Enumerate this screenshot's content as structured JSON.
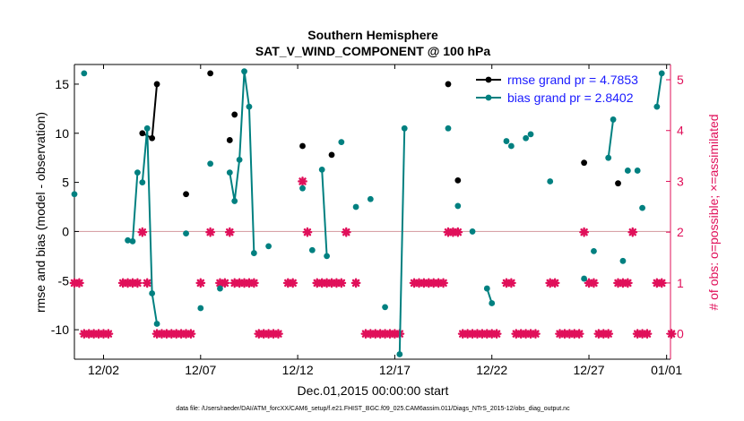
{
  "chart_data": {
    "type": "line",
    "title": "Southern Hemisphere",
    "subtitle": "SAT_V_WIND_COMPONENT @ 100 hPa",
    "xlabel": "Dec.01,2015 00:00:00 start",
    "ylabel": "rmse and bias (model - observation)",
    "ylabel_right": "# of obs: o=possible; ×=assimilated",
    "footnote": "data file: /Users/raeder/DAI/ATM_forcXX/CAM6_setup/f.e21.FHIST_BGC.f09_025.CAM6assim.011/Diags_NTrS_2015-12/obs_diag_output.nc",
    "xlim": [
      0.5,
      31.2
    ],
    "ylim": [
      -13,
      17
    ],
    "ylim_right": [
      -0.5,
      5.3
    ],
    "x_ticks": [
      {
        "value": 2,
        "label": "12/02"
      },
      {
        "value": 7,
        "label": "12/07"
      },
      {
        "value": 12,
        "label": "12/12"
      },
      {
        "value": 17,
        "label": "12/17"
      },
      {
        "value": 22,
        "label": "12/22"
      },
      {
        "value": 27,
        "label": "12/27"
      },
      {
        "value": 31,
        "label": "01/01"
      }
    ],
    "y_ticks": [
      {
        "value": 15,
        "label": "15"
      },
      {
        "value": 10,
        "label": "10"
      },
      {
        "value": 5,
        "label": "5"
      },
      {
        "value": 0,
        "label": "0"
      },
      {
        "value": -5,
        "label": "-5"
      },
      {
        "value": -10,
        "label": "-10"
      }
    ],
    "y_ticks_right": [
      {
        "value": 5,
        "label": "5"
      },
      {
        "value": 4,
        "label": "4"
      },
      {
        "value": 3,
        "label": "3"
      },
      {
        "value": 2,
        "label": "2"
      },
      {
        "value": 1,
        "label": "1"
      },
      {
        "value": 0,
        "label": "0"
      }
    ],
    "zero_line": 0,
    "legend": [
      {
        "text": "rmse grand pr = 4.7853",
        "color": "#000000"
      },
      {
        "text": "bias grand pr = 2.8402",
        "color": "#008080"
      }
    ],
    "series": [
      {
        "name": "rmse",
        "color": "#000000",
        "segments": [
          [
            [
              4,
              10.0
            ],
            [
              4.5,
              9.5
            ],
            [
              4.75,
              15.0
            ]
          ],
          [
            [
              6.25,
              3.8
            ]
          ],
          [
            [
              7.5,
              16.1
            ]
          ],
          [
            [
              8.5,
              9.3
            ]
          ],
          [
            [
              8.75,
              11.9
            ]
          ],
          [
            [
              12.25,
              8.7
            ]
          ],
          [
            [
              13.75,
              7.8
            ]
          ],
          [
            [
              19.75,
              15.0
            ]
          ],
          [
            [
              20.25,
              5.2
            ]
          ],
          [
            [
              26.75,
              7.0
            ]
          ],
          [
            [
              28.5,
              4.9
            ]
          ]
        ]
      },
      {
        "name": "bias",
        "color": "#008080",
        "segments": [
          [
            [
              0.5,
              3.8
            ]
          ],
          [
            [
              1,
              16.1
            ]
          ],
          [
            [
              3.25,
              -0.9
            ],
            [
              3.5,
              -1.0
            ],
            [
              3.75,
              6.0
            ]
          ],
          [
            [
              4,
              5.0
            ],
            [
              4.25,
              10.5
            ],
            [
              4.5,
              -6.3
            ],
            [
              4.75,
              -9.4
            ]
          ],
          [
            [
              6.25,
              -0.2
            ]
          ],
          [
            [
              7,
              -7.8
            ]
          ],
          [
            [
              7.5,
              6.9
            ]
          ],
          [
            [
              8,
              -5.8
            ]
          ],
          [
            [
              8.5,
              6.0
            ],
            [
              8.75,
              3.1
            ],
            [
              9,
              7.3
            ],
            [
              9.25,
              16.3
            ],
            [
              9.5,
              12.7
            ],
            [
              9.75,
              -2.2
            ]
          ],
          [
            [
              10.5,
              -1.5
            ]
          ],
          [
            [
              12.25,
              4.4
            ]
          ],
          [
            [
              12.75,
              -1.9
            ]
          ],
          [
            [
              13.25,
              6.3
            ],
            [
              13.5,
              -2.5
            ]
          ],
          [
            [
              14.25,
              9.1
            ]
          ],
          [
            [
              15,
              2.5
            ]
          ],
          [
            [
              15.75,
              3.3
            ]
          ],
          [
            [
              16.5,
              -7.7
            ]
          ],
          [
            [
              17.25,
              -12.5
            ],
            [
              17.5,
              10.5
            ]
          ],
          [
            [
              19.75,
              10.5
            ]
          ],
          [
            [
              20.25,
              2.6
            ]
          ],
          [
            [
              21,
              0.0
            ]
          ],
          [
            [
              21.75,
              -5.8
            ],
            [
              22,
              -7.3
            ]
          ],
          [
            [
              22.75,
              9.2
            ]
          ],
          [
            [
              23,
              8.7
            ]
          ],
          [
            [
              23.75,
              9.5
            ]
          ],
          [
            [
              24,
              9.9
            ]
          ],
          [
            [
              25,
              5.1
            ]
          ],
          [
            [
              26.75,
              -4.8
            ]
          ],
          [
            [
              27.25,
              -2.0
            ]
          ],
          [
            [
              28,
              7.5
            ],
            [
              28.25,
              11.4
            ]
          ],
          [
            [
              28.75,
              -3.0
            ]
          ],
          [
            [
              29,
              6.2
            ]
          ],
          [
            [
              29.5,
              6.2
            ]
          ],
          [
            [
              29.75,
              2.4
            ]
          ],
          [
            [
              30.5,
              12.7
            ],
            [
              30.75,
              16.1
            ]
          ]
        ]
      }
    ],
    "obs_counts": {
      "name": "# of obs",
      "color": "#e0105a",
      "points": [
        [
          0.5,
          1
        ],
        [
          0.75,
          1
        ],
        [
          1,
          0
        ],
        [
          1.25,
          0
        ],
        [
          1.5,
          0
        ],
        [
          1.75,
          0
        ],
        [
          2,
          0
        ],
        [
          2.25,
          0
        ],
        [
          3,
          1
        ],
        [
          3.25,
          1
        ],
        [
          3.5,
          1
        ],
        [
          3.75,
          1
        ],
        [
          4,
          2
        ],
        [
          4.25,
          1
        ],
        [
          4.75,
          0
        ],
        [
          5,
          0
        ],
        [
          5.25,
          0
        ],
        [
          5.5,
          0
        ],
        [
          5.75,
          0
        ],
        [
          6,
          0
        ],
        [
          6.25,
          0
        ],
        [
          6.5,
          0
        ],
        [
          7,
          1
        ],
        [
          7.5,
          2
        ],
        [
          8,
          1
        ],
        [
          8.25,
          1
        ],
        [
          8.5,
          2
        ],
        [
          8.75,
          1
        ],
        [
          9,
          1
        ],
        [
          9.25,
          1
        ],
        [
          9.5,
          1
        ],
        [
          9.75,
          1
        ],
        [
          10,
          0
        ],
        [
          10.25,
          0
        ],
        [
          10.5,
          0
        ],
        [
          10.75,
          0
        ],
        [
          11,
          0
        ],
        [
          11.5,
          1
        ],
        [
          11.75,
          1
        ],
        [
          12.25,
          3
        ],
        [
          12.5,
          2
        ],
        [
          13,
          1
        ],
        [
          13.25,
          1
        ],
        [
          13.5,
          1
        ],
        [
          13.75,
          1
        ],
        [
          14,
          1
        ],
        [
          14.25,
          1
        ],
        [
          14.5,
          2
        ],
        [
          15,
          1
        ],
        [
          15.5,
          0
        ],
        [
          15.75,
          0
        ],
        [
          16,
          0
        ],
        [
          16.25,
          0
        ],
        [
          16.5,
          0
        ],
        [
          16.75,
          0
        ],
        [
          17,
          0
        ],
        [
          17.25,
          0
        ],
        [
          18,
          1
        ],
        [
          18.25,
          1
        ],
        [
          18.5,
          1
        ],
        [
          18.75,
          1
        ],
        [
          19,
          1
        ],
        [
          19.25,
          1
        ],
        [
          19.5,
          1
        ],
        [
          19.75,
          2
        ],
        [
          20,
          2
        ],
        [
          20.25,
          2
        ],
        [
          20.5,
          0
        ],
        [
          20.75,
          0
        ],
        [
          21,
          0
        ],
        [
          21.25,
          0
        ],
        [
          21.5,
          0
        ],
        [
          21.75,
          0
        ],
        [
          22,
          0
        ],
        [
          22.25,
          0
        ],
        [
          22.75,
          1
        ],
        [
          23,
          1
        ],
        [
          23.25,
          0
        ],
        [
          23.5,
          0
        ],
        [
          23.75,
          0
        ],
        [
          24,
          0
        ],
        [
          24.25,
          0
        ],
        [
          25,
          1
        ],
        [
          25.25,
          1
        ],
        [
          25.5,
          0
        ],
        [
          25.75,
          0
        ],
        [
          26,
          0
        ],
        [
          26.25,
          0
        ],
        [
          26.5,
          0
        ],
        [
          26.75,
          2
        ],
        [
          27,
          1
        ],
        [
          27.25,
          1
        ],
        [
          27.5,
          0
        ],
        [
          27.75,
          0
        ],
        [
          28,
          0
        ],
        [
          28.5,
          1
        ],
        [
          28.75,
          1
        ],
        [
          29,
          1
        ],
        [
          29.25,
          2
        ],
        [
          29.5,
          0
        ],
        [
          29.75,
          0
        ],
        [
          30,
          0
        ],
        [
          30.5,
          1
        ],
        [
          30.75,
          1
        ],
        [
          31.25,
          0
        ]
      ]
    }
  }
}
